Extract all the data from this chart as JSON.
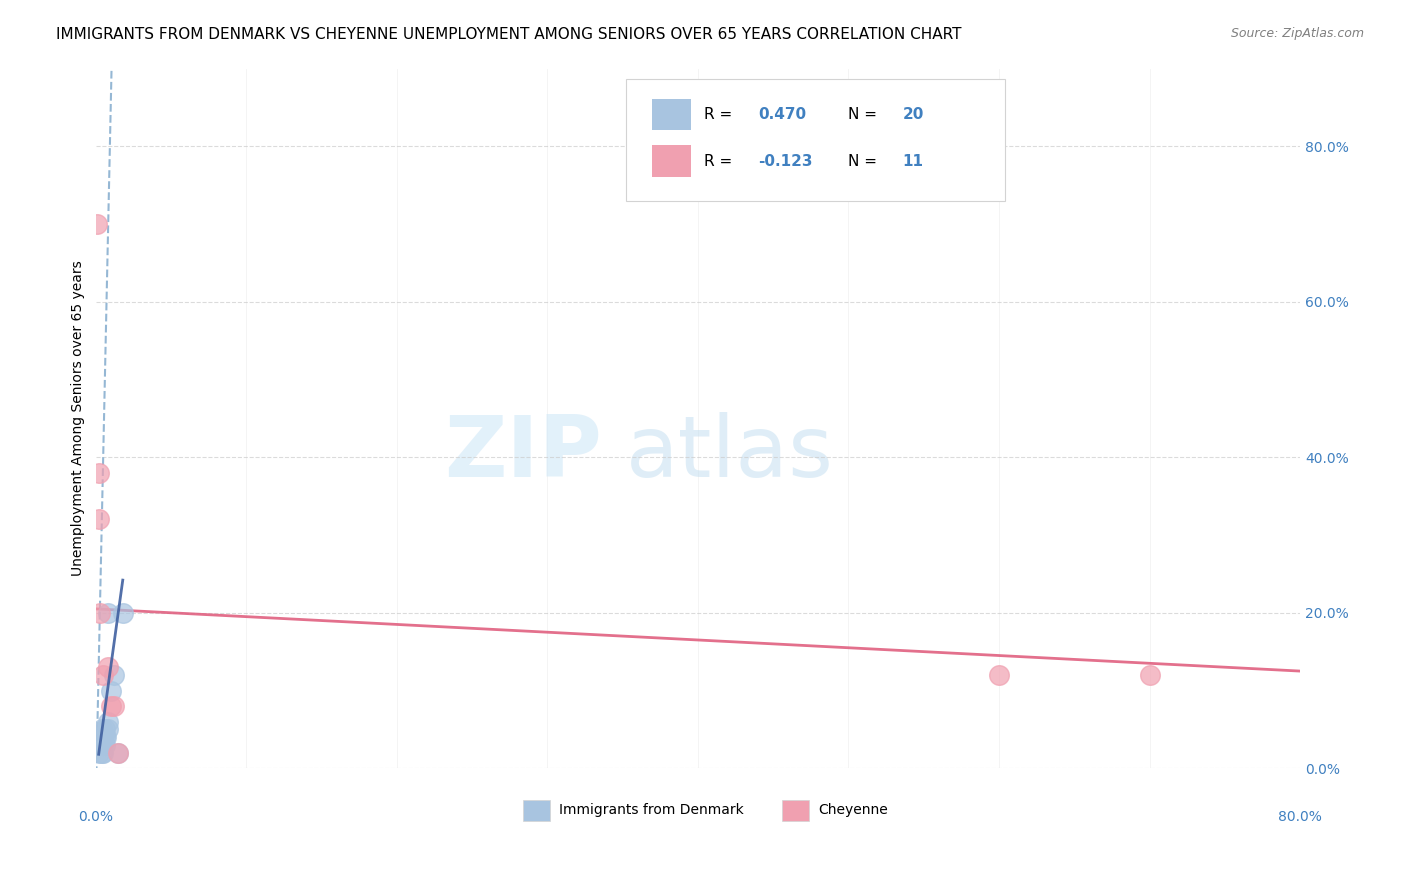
{
  "title": "IMMIGRANTS FROM DENMARK VS CHEYENNE UNEMPLOYMENT AMONG SENIORS OVER 65 YEARS CORRELATION CHART",
  "source": "Source: ZipAtlas.com",
  "ylabel": "Unemployment Among Seniors over 65 years",
  "right_yticks": [
    "80.0%",
    "60.0%",
    "40.0%",
    "20.0%",
    "0.0%"
  ],
  "right_ytick_vals": [
    0.8,
    0.6,
    0.4,
    0.2,
    0.0
  ],
  "xlim": [
    0.0,
    0.8
  ],
  "ylim": [
    0.0,
    0.9
  ],
  "legend1_R": "0.470",
  "legend1_N": "20",
  "legend2_R": "-0.123",
  "legend2_N": "11",
  "blue_color": "#a8c4e0",
  "pink_color": "#f0a0b0",
  "trend_blue_dashed_color": "#8ab0d0",
  "trend_pink_color": "#e06080",
  "trend_blue_solid_color": "#4060a0",
  "watermark_zip_color": "#d0e8f8",
  "watermark_atlas_color": "#c0ddf0",
  "blue_scatter_x": [
    0.002,
    0.003,
    0.003,
    0.004,
    0.004,
    0.004,
    0.005,
    0.005,
    0.005,
    0.006,
    0.006,
    0.006,
    0.007,
    0.008,
    0.008,
    0.008,
    0.01,
    0.012,
    0.015,
    0.018
  ],
  "blue_scatter_y": [
    0.02,
    0.03,
    0.04,
    0.02,
    0.03,
    0.05,
    0.02,
    0.03,
    0.04,
    0.03,
    0.04,
    0.05,
    0.04,
    0.05,
    0.06,
    0.2,
    0.1,
    0.12,
    0.02,
    0.2
  ],
  "pink_scatter_x": [
    0.001,
    0.002,
    0.002,
    0.003,
    0.005,
    0.008,
    0.01,
    0.012,
    0.015,
    0.6,
    0.7
  ],
  "pink_scatter_y": [
    0.7,
    0.38,
    0.32,
    0.2,
    0.12,
    0.13,
    0.08,
    0.08,
    0.02,
    0.12,
    0.12
  ],
  "grid_color": "#cccccc",
  "background_color": "#ffffff",
  "title_fontsize": 11,
  "axis_label_fontsize": 10,
  "tick_fontsize": 10,
  "source_fontsize": 9,
  "legend_fontsize": 11
}
